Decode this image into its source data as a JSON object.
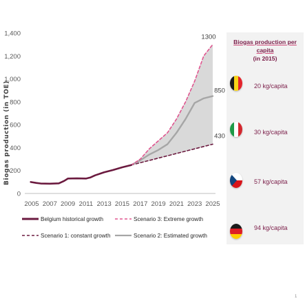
{
  "chart_data": {
    "type": "line",
    "title": "",
    "ylabel": "Biogas production (in TOE)",
    "xlabel": "",
    "ylim": [
      0,
      1400
    ],
    "yticks": [
      0,
      200,
      400,
      600,
      800,
      1000,
      1200,
      1400
    ],
    "ytick_labels": [
      "0",
      "200",
      "400",
      "600",
      "800",
      "1,000",
      "1,200",
      "1,400"
    ],
    "xticks": [
      2005,
      2007,
      2009,
      2011,
      2013,
      2015,
      2017,
      2019,
      2021,
      2023,
      2025
    ],
    "xlim": [
      2005,
      2025
    ],
    "grid": false,
    "legend": "bottom",
    "series": [
      {
        "name": "Belgium historical growth",
        "style": "solid-thick",
        "color": "#6b1a3f",
        "x": [
          2004.9,
          2005.5,
          2006,
          2007,
          2008,
          2008.6,
          2009,
          2010,
          2011,
          2011.5,
          2012,
          2013,
          2014,
          2015,
          2016
        ],
        "y": [
          100,
          92,
          87,
          85,
          88,
          110,
          130,
          132,
          130,
          140,
          158,
          185,
          205,
          228,
          248
        ]
      },
      {
        "name": "Scenario 3: Extreme growth",
        "style": "dashed",
        "color": "#e0558f",
        "x": [
          2016,
          2017,
          2018,
          2019,
          2020,
          2021,
          2022,
          2023,
          2024,
          2025
        ],
        "y": [
          248,
          300,
          390,
          460,
          530,
          650,
          800,
          980,
          1200,
          1300
        ]
      },
      {
        "name": "Scenario 1: constant growth",
        "style": "dashed",
        "color": "#6b1a3f",
        "x": [
          2016,
          2025
        ],
        "y": [
          248,
          430
        ]
      },
      {
        "name": "Scenario 2: Estimated growth",
        "style": "solid-gray",
        "color": "#a6a6a6",
        "x": [
          2016,
          2017,
          2018,
          2019,
          2020,
          2021,
          2022,
          2023,
          2024,
          2025
        ],
        "y": [
          248,
          290,
          340,
          380,
          430,
          530,
          650,
          790,
          830,
          850
        ]
      }
    ],
    "band": {
      "between": [
        "Scenario 1: constant growth",
        "Scenario 3: Extreme growth"
      ],
      "color": "#d9d9d9"
    },
    "end_labels": [
      {
        "text": "1300",
        "value": 1300
      },
      {
        "text": "850",
        "value": 850
      },
      {
        "text": "430",
        "value": 430
      }
    ]
  },
  "legend_labels": {
    "historical": "Belgium historical growth",
    "extreme": "Scenario 3: Extreme growth",
    "constant": "Scenario 1: constant growth",
    "estimated": "Scenario 2: Estimated growth"
  },
  "panel": {
    "title_line1": "Biogas production per capita",
    "title_line2": "(in 2015)",
    "items": [
      {
        "country": "Belgium",
        "flag": "belgium-flag-icon",
        "value": "20 kg/capita"
      },
      {
        "country": "Italy",
        "flag": "italy-flag-icon",
        "value": "30 kg/capita"
      },
      {
        "country": "Czech Republic",
        "flag": "czech-flag-icon",
        "value": "57 kg/capita"
      },
      {
        "country": "Germany",
        "flag": "germany-flag-icon",
        "value": "94 kg/capita"
      }
    ],
    "colors": {
      "accent": "#7b1e49",
      "panel_bg": "#f2f2f2"
    }
  },
  "page_number": "1"
}
